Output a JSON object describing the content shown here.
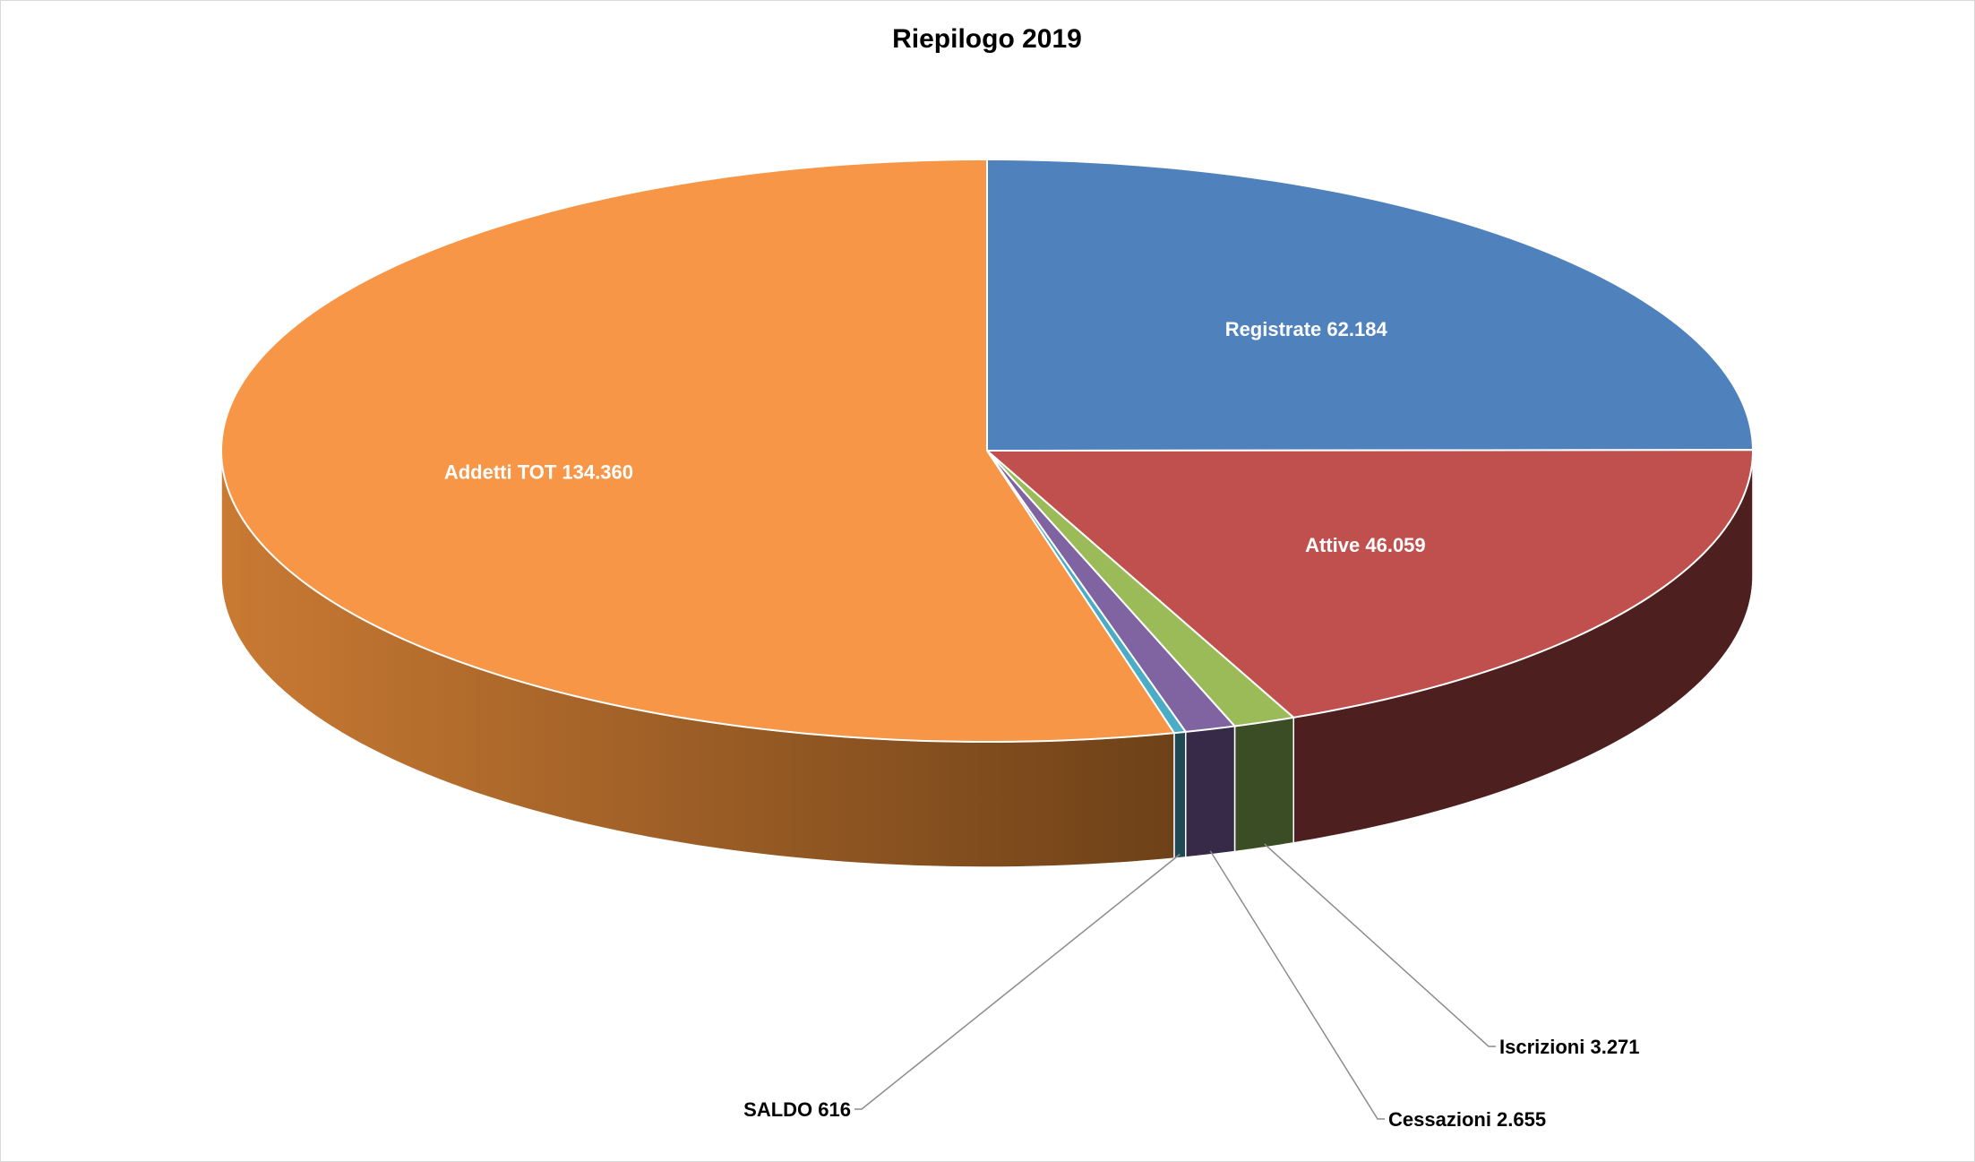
{
  "chart_data": {
    "type": "pie",
    "title": "Riepilogo 2019",
    "three_d": true,
    "slices": [
      {
        "label": "Registrate",
        "value": 62184,
        "value_text": "62.184",
        "color": "#4f81bd",
        "side_color": "#2c4d75",
        "label_position": "inside"
      },
      {
        "label": "Attive",
        "value": 46059,
        "value_text": "46.059",
        "color": "#c0504d",
        "side_color": "#4e1f1f",
        "label_position": "inside"
      },
      {
        "label": "Iscrizioni",
        "value": 3271,
        "value_text": "3.271",
        "color": "#9bbb59",
        "side_color": "#3b4d24",
        "label_position": "outside"
      },
      {
        "label": "Cessazioni",
        "value": 2655,
        "value_text": "2.655",
        "color": "#8064a2",
        "side_color": "#362a48",
        "label_position": "outside"
      },
      {
        "label": "SALDO",
        "value": 616,
        "value_text": "616",
        "color": "#4bacc6",
        "side_color": "#1f4a55",
        "label_position": "outside"
      },
      {
        "label": "Addetti TOT",
        "value": 134360,
        "value_text": "134.360",
        "color": "#f79646",
        "side_color": "#c97a33",
        "side_color_dark": "#6e4118",
        "label_position": "inside"
      }
    ],
    "legend": "none"
  }
}
